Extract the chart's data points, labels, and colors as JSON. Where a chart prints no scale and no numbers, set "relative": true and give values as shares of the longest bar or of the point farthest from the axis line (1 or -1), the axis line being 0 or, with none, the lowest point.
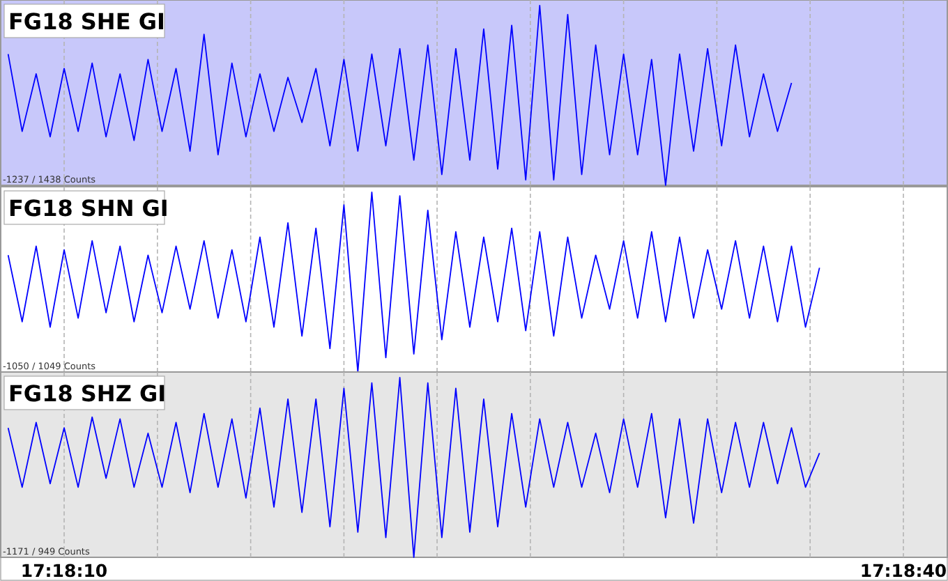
{
  "chart_data": [
    {
      "type": "line",
      "title": "FG18 SHE GI",
      "relative": true,
      "grid": "x",
      "tick_labels": false,
      "line_style": "solid",
      "annotations": [
        "-1237 / 1438 Counts"
      ],
      "xlim": [
        17.302148,
        17.311547
      ],
      "xticks": [
        {
          "value": 17.302778,
          "label": null
        },
        {
          "value": 17.303704,
          "label": null
        },
        {
          "value": 17.30463,
          "label": null
        },
        {
          "value": 17.305556,
          "label": null
        },
        {
          "value": 17.306481,
          "label": null
        },
        {
          "value": 17.307407,
          "label": null
        },
        {
          "value": 17.308333,
          "label": null
        },
        {
          "value": 17.309259,
          "label": null
        },
        {
          "value": 17.310185,
          "label": null
        },
        {
          "value": 17.311111,
          "label": null
        }
      ],
      "x": [
        17.302222,
        17.302361,
        17.3025,
        17.302639,
        17.302778,
        17.302917,
        17.303056,
        17.303194,
        17.303333,
        17.303472,
        17.303611,
        17.30375,
        17.303889,
        17.304028,
        17.304167,
        17.304306,
        17.304444,
        17.304583,
        17.304722,
        17.304861,
        17.305,
        17.305139,
        17.305278,
        17.305417,
        17.305556,
        17.305694,
        17.305833,
        17.305972,
        17.306111,
        17.30625,
        17.306389,
        17.306528,
        17.306667,
        17.306806,
        17.306944,
        17.307083,
        17.307222,
        17.307361,
        17.3075,
        17.307639,
        17.307778,
        17.307917,
        17.308056,
        17.308194,
        17.308333,
        17.308472,
        17.308611,
        17.30875,
        17.308889,
        17.309028,
        17.309167,
        17.309306,
        17.309444,
        17.309583,
        17.309722,
        17.309861,
        17.31
      ],
      "series": [
        {
          "color": "#0000ff",
          "values": [
            0.73,
            0.3,
            0.62,
            0.27,
            0.65,
            0.3,
            0.68,
            0.27,
            0.62,
            0.25,
            0.7,
            0.3,
            0.65,
            0.19,
            0.84,
            0.17,
            0.68,
            0.27,
            0.62,
            0.3,
            0.6,
            0.35,
            0.65,
            0.22,
            0.7,
            0.19,
            0.73,
            0.22,
            0.76,
            0.14,
            0.78,
            0.06,
            0.76,
            0.14,
            0.87,
            0.09,
            0.89,
            0.03,
            1,
            0.03,
            0.95,
            0.06,
            0.78,
            0.17,
            0.73,
            0.17,
            0.7,
            0,
            0.73,
            0.19,
            0.76,
            0.22,
            0.78,
            0.27,
            0.62,
            0.3,
            0.57
          ]
        }
      ]
    },
    {
      "type": "line",
      "title": "FG18 SHN GI",
      "relative": true,
      "grid": "x",
      "tick_labels": false,
      "line_style": "solid",
      "annotations": [
        "-1050 / 1049 Counts"
      ],
      "xlim": [
        17.302148,
        17.311547
      ],
      "xticks": [
        {
          "value": 17.302778,
          "label": null
        },
        {
          "value": 17.303704,
          "label": null
        },
        {
          "value": 17.30463,
          "label": null
        },
        {
          "value": 17.305556,
          "label": null
        },
        {
          "value": 17.306481,
          "label": null
        },
        {
          "value": 17.307407,
          "label": null
        },
        {
          "value": 17.308333,
          "label": null
        },
        {
          "value": 17.309259,
          "label": null
        },
        {
          "value": 17.310185,
          "label": null
        },
        {
          "value": 17.311111,
          "label": null
        }
      ],
      "x": [
        17.302222,
        17.302361,
        17.3025,
        17.302639,
        17.302778,
        17.302917,
        17.303056,
        17.303194,
        17.303333,
        17.303472,
        17.303611,
        17.30375,
        17.303889,
        17.304028,
        17.304167,
        17.304306,
        17.304444,
        17.304583,
        17.304722,
        17.304861,
        17.305,
        17.305139,
        17.305278,
        17.305417,
        17.305556,
        17.305694,
        17.305833,
        17.305972,
        17.306111,
        17.30625,
        17.306389,
        17.306528,
        17.306667,
        17.306806,
        17.306944,
        17.307083,
        17.307222,
        17.307361,
        17.3075,
        17.307639,
        17.307778,
        17.307917,
        17.308056,
        17.308194,
        17.308333,
        17.308472,
        17.308611,
        17.30875,
        17.308889,
        17.309028,
        17.309167,
        17.309306,
        17.309444,
        17.309583,
        17.309722,
        17.309861,
        17.31,
        17.310139,
        17.310278
      ],
      "series": [
        {
          "color": "#0000ff",
          "values": [
            0.65,
            0.28,
            0.7,
            0.25,
            0.68,
            0.3,
            0.73,
            0.33,
            0.7,
            0.28,
            0.65,
            0.33,
            0.7,
            0.35,
            0.73,
            0.3,
            0.68,
            0.28,
            0.75,
            0.25,
            0.83,
            0.2,
            0.8,
            0.13,
            0.93,
            0,
            1,
            0.08,
            0.98,
            0.1,
            0.9,
            0.18,
            0.78,
            0.25,
            0.75,
            0.28,
            0.8,
            0.23,
            0.78,
            0.2,
            0.75,
            0.3,
            0.65,
            0.35,
            0.73,
            0.3,
            0.78,
            0.28,
            0.75,
            0.3,
            0.68,
            0.35,
            0.73,
            0.3,
            0.7,
            0.28,
            0.7,
            0.25,
            0.58
          ]
        }
      ]
    },
    {
      "type": "line",
      "title": "FG18 SHZ GI",
      "relative": true,
      "grid": "x",
      "tick_labels": "x",
      "line_style": "solid",
      "annotations": [
        "-1171 / 949 Counts"
      ],
      "xlim": [
        17.302148,
        17.311547
      ],
      "xticks": [
        {
          "value": 17.302778,
          "label": "17:18:10"
        },
        {
          "value": 17.303704,
          "label": null
        },
        {
          "value": 17.30463,
          "label": null
        },
        {
          "value": 17.305556,
          "label": null
        },
        {
          "value": 17.306481,
          "label": null
        },
        {
          "value": 17.307407,
          "label": null
        },
        {
          "value": 17.308333,
          "label": null
        },
        {
          "value": 17.309259,
          "label": null
        },
        {
          "value": 17.310185,
          "label": null
        },
        {
          "value": 17.311111,
          "label": "17:18:40"
        }
      ],
      "x": [
        17.302222,
        17.302361,
        17.3025,
        17.302639,
        17.302778,
        17.302917,
        17.303056,
        17.303194,
        17.303333,
        17.303472,
        17.303611,
        17.30375,
        17.303889,
        17.304028,
        17.304167,
        17.304306,
        17.304444,
        17.304583,
        17.304722,
        17.304861,
        17.305,
        17.305139,
        17.305278,
        17.305417,
        17.305556,
        17.305694,
        17.305833,
        17.305972,
        17.306111,
        17.30625,
        17.306389,
        17.306528,
        17.306667,
        17.306806,
        17.306944,
        17.307083,
        17.307222,
        17.307361,
        17.3075,
        17.307639,
        17.307778,
        17.307917,
        17.308056,
        17.308194,
        17.308333,
        17.308472,
        17.308611,
        17.30875,
        17.308889,
        17.309028,
        17.309167,
        17.309306,
        17.309444,
        17.309583,
        17.309722,
        17.309861,
        17.31,
        17.310139,
        17.310278
      ],
      "series": [
        {
          "color": "#0000ff",
          "values": [
            0.72,
            0.39,
            0.75,
            0.41,
            0.72,
            0.39,
            0.78,
            0.44,
            0.77,
            0.39,
            0.69,
            0.39,
            0.75,
            0.36,
            0.8,
            0.39,
            0.77,
            0.33,
            0.83,
            0.28,
            0.88,
            0.25,
            0.88,
            0.17,
            0.94,
            0.14,
            0.97,
            0.11,
            1,
            0,
            0.97,
            0.11,
            0.94,
            0.14,
            0.88,
            0.17,
            0.8,
            0.28,
            0.77,
            0.39,
            0.75,
            0.39,
            0.69,
            0.36,
            0.77,
            0.39,
            0.8,
            0.22,
            0.77,
            0.19,
            0.77,
            0.36,
            0.75,
            0.39,
            0.75,
            0.41,
            0.72,
            0.39,
            0.58
          ]
        }
      ]
    }
  ]
}
